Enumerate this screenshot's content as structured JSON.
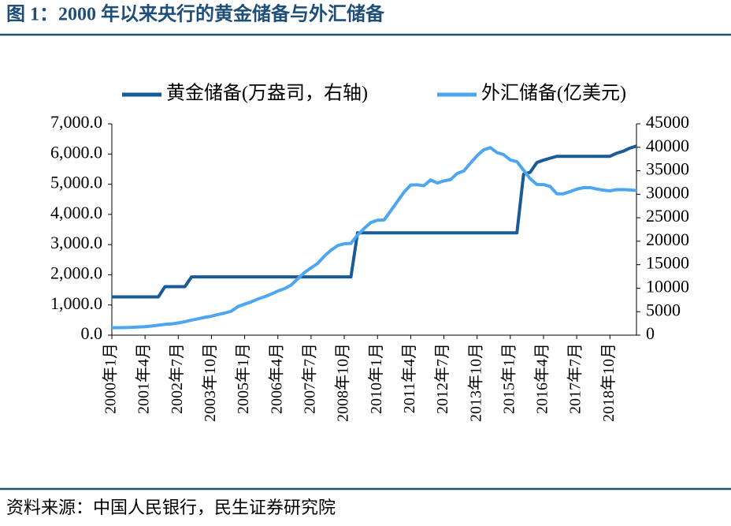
{
  "chart_data": {
    "type": "line",
    "title": "图 1：2000 年以来央行的黄金储备与外汇储备",
    "source": "资料来源：中国人民银行，民生证券研究院",
    "categories": [
      "2000年1月",
      null,
      null,
      null,
      null,
      "2001年4月",
      null,
      null,
      null,
      null,
      "2002年7月",
      null,
      null,
      null,
      null,
      "2003年10月",
      null,
      null,
      null,
      null,
      "2005年1月",
      null,
      null,
      null,
      null,
      "2006年4月",
      null,
      null,
      null,
      null,
      "2007年7月",
      null,
      null,
      null,
      null,
      "2008年10月",
      null,
      null,
      null,
      null,
      "2010年1月",
      null,
      null,
      null,
      null,
      "2011年4月",
      null,
      null,
      null,
      null,
      "2012年7月",
      null,
      null,
      null,
      null,
      "2013年10月",
      null,
      null,
      null,
      null,
      "2015年1月",
      null,
      null,
      null,
      null,
      "2016年4月",
      null,
      null,
      null,
      null,
      "2017年7月",
      null,
      null,
      null,
      null,
      "2018年10月",
      null,
      null,
      null,
      null
    ],
    "series": [
      {
        "name": "黄金储备(万盎司，右轴)",
        "color": "#1a5a96",
        "axis": "y",
        "values": [
          1267,
          1267,
          1267,
          1267,
          1267,
          1267,
          1267,
          1267,
          1608,
          1608,
          1608,
          1608,
          1929,
          1929,
          1929,
          1929,
          1929,
          1929,
          1929,
          1929,
          1929,
          1929,
          1929,
          1929,
          1929,
          1929,
          1929,
          1929,
          1929,
          1929,
          1929,
          1929,
          1929,
          1929,
          1929,
          1929,
          1929,
          3389,
          3389,
          3389,
          3389,
          3389,
          3389,
          3389,
          3389,
          3389,
          3389,
          3389,
          3389,
          3389,
          3389,
          3389,
          3389,
          3389,
          3389,
          3389,
          3389,
          3389,
          3389,
          3389,
          3389,
          3389,
          5331,
          5396,
          5718,
          5797,
          5861,
          5924,
          5924,
          5924,
          5924,
          5924,
          5924,
          5924,
          5924,
          5924,
          6026,
          6092,
          6194,
          6264
        ]
      },
      {
        "name": "外汇储备(亿美元)",
        "color": "#4da6ef",
        "axis": "y2",
        "values": [
          1568,
          1600,
          1620,
          1656,
          1750,
          1800,
          1950,
          2122,
          2300,
          2400,
          2600,
          2864,
          3200,
          3500,
          3800,
          4033,
          4400,
          4700,
          5100,
          6099,
          6600,
          7100,
          7700,
          8189,
          8750,
          9400,
          9900,
          10663,
          12020,
          13326,
          14336,
          15282,
          16822,
          18088,
          19056,
          19460,
          19537,
          21316,
          22726,
          23992,
          24471,
          24543,
          26483,
          28473,
          30447,
          31975,
          32017,
          31811,
          33050,
          32400,
          32850,
          33116,
          34426,
          34967,
          36627,
          38213,
          39481,
          39932,
          38877,
          38430,
          37300,
          36938,
          35141,
          33304,
          32090,
          32052,
          31664,
          30105,
          30091,
          30568,
          31085,
          31399,
          31428,
          31121,
          30870,
          30727,
          30988,
          31010,
          30924,
          30800
        ]
      }
    ],
    "ylim": [
      0,
      7000
    ],
    "yticks": [
      {
        "value": 0,
        "label": "0.0"
      },
      {
        "value": 1000,
        "label": "1,000.0"
      },
      {
        "value": 2000,
        "label": "2,000.0"
      },
      {
        "value": 3000,
        "label": "3,000.0"
      },
      {
        "value": 4000,
        "label": "4,000.0"
      },
      {
        "value": 5000,
        "label": "5,000.0"
      },
      {
        "value": 6000,
        "label": "6,000.0"
      },
      {
        "value": 7000,
        "label": "7,000.0"
      }
    ],
    "y2lim": [
      0,
      45000
    ],
    "y2ticks": [
      0,
      5000,
      10000,
      15000,
      20000,
      25000,
      30000,
      35000,
      40000,
      45000
    ],
    "legend": "top",
    "grid": false
  }
}
